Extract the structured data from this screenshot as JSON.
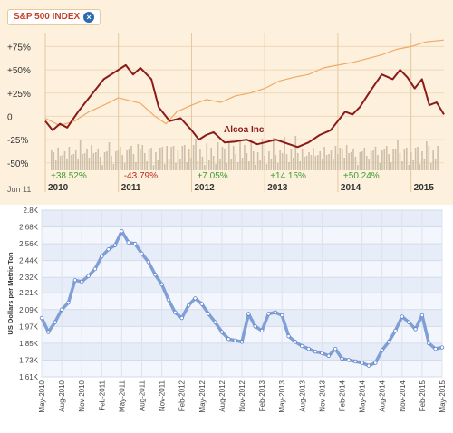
{
  "chart_data": [
    {
      "type": "line",
      "title": "S&P 500 INDEX",
      "title_close_icon": "close-icon",
      "y_ticks": [
        "+75%",
        "+50%",
        "+25%",
        "0",
        "-25%",
        "-50%"
      ],
      "y_tick_values": [
        75,
        50,
        25,
        0,
        -25,
        -50
      ],
      "ylim": [
        -58,
        90
      ],
      "x_range": [
        2010.0,
        2015.45
      ],
      "x_tick_values": [
        2010.0,
        2011.0,
        2012.0,
        2013.0,
        2014.0,
        2015.0
      ],
      "x_ticks": [
        "2010",
        "2011",
        "2012",
        "2013",
        "2014",
        "2015"
      ],
      "corner_label": "Jun 11",
      "annual_changes": [
        {
          "x": 2010.0,
          "label": "+38.52%",
          "color": "#3e9b2e"
        },
        {
          "x": 2011.0,
          "label": "-43.79%",
          "color": "#c0261b"
        },
        {
          "x": 2012.0,
          "label": "+7.05%",
          "color": "#3e9b2e"
        },
        {
          "x": 2013.0,
          "label": "+14.15%",
          "color": "#3e9b2e"
        },
        {
          "x": 2014.0,
          "label": "+50.24%",
          "color": "#3e9b2e"
        }
      ],
      "annotation": "Alcoa Inc",
      "series": [
        {
          "name": "Alcoa Inc",
          "color": "#8b1a1a",
          "points": [
            [
              2010.0,
              -5
            ],
            [
              2010.1,
              -15
            ],
            [
              2010.2,
              -8
            ],
            [
              2010.3,
              -12
            ],
            [
              2010.45,
              5
            ],
            [
              2010.6,
              20
            ],
            [
              2010.8,
              40
            ],
            [
              2011.0,
              50
            ],
            [
              2011.1,
              55
            ],
            [
              2011.2,
              45
            ],
            [
              2011.3,
              52
            ],
            [
              2011.45,
              40
            ],
            [
              2011.55,
              10
            ],
            [
              2011.7,
              -5
            ],
            [
              2011.85,
              -2
            ],
            [
              2012.0,
              -15
            ],
            [
              2012.1,
              -25
            ],
            [
              2012.2,
              -20
            ],
            [
              2012.3,
              -17
            ],
            [
              2012.45,
              -28
            ],
            [
              2012.6,
              -27
            ],
            [
              2012.75,
              -25
            ],
            [
              2012.9,
              -30
            ],
            [
              2013.0,
              -28
            ],
            [
              2013.15,
              -25
            ],
            [
              2013.3,
              -29
            ],
            [
              2013.45,
              -33
            ],
            [
              2013.6,
              -28
            ],
            [
              2013.75,
              -20
            ],
            [
              2013.9,
              -15
            ],
            [
              2014.0,
              -5
            ],
            [
              2014.1,
              5
            ],
            [
              2014.2,
              2
            ],
            [
              2014.3,
              10
            ],
            [
              2014.45,
              28
            ],
            [
              2014.6,
              45
            ],
            [
              2014.75,
              40
            ],
            [
              2014.85,
              50
            ],
            [
              2014.95,
              42
            ],
            [
              2015.05,
              30
            ],
            [
              2015.15,
              40
            ],
            [
              2015.25,
              12
            ],
            [
              2015.35,
              15
            ],
            [
              2015.45,
              2
            ]
          ]
        },
        {
          "name": "S&P 500 INDEX",
          "color": "#f0a865",
          "points": [
            [
              2010.0,
              -2
            ],
            [
              2010.2,
              -10
            ],
            [
              2010.4,
              -5
            ],
            [
              2010.6,
              5
            ],
            [
              2010.8,
              12
            ],
            [
              2011.0,
              20
            ],
            [
              2011.3,
              14
            ],
            [
              2011.5,
              0
            ],
            [
              2011.65,
              -8
            ],
            [
              2011.8,
              5
            ],
            [
              2012.0,
              12
            ],
            [
              2012.2,
              18
            ],
            [
              2012.4,
              15
            ],
            [
              2012.6,
              22
            ],
            [
              2012.8,
              25
            ],
            [
              2013.0,
              30
            ],
            [
              2013.2,
              38
            ],
            [
              2013.4,
              42
            ],
            [
              2013.6,
              45
            ],
            [
              2013.8,
              52
            ],
            [
              2014.0,
              55
            ],
            [
              2014.2,
              58
            ],
            [
              2014.4,
              62
            ],
            [
              2014.6,
              66
            ],
            [
              2014.8,
              72
            ],
            [
              2015.0,
              75
            ],
            [
              2015.2,
              80
            ],
            [
              2015.45,
              82
            ]
          ]
        }
      ],
      "grid": true
    },
    {
      "type": "line",
      "ylabel": "US Dollars per Metric Ton",
      "y_ticks": [
        "2.8K",
        "2.68K",
        "2.56K",
        "2.44K",
        "2.32K",
        "2.21K",
        "2.09K",
        "1.97K",
        "1.85K",
        "1.73K",
        "1.61K"
      ],
      "y_tick_values": [
        2.8,
        2.68,
        2.56,
        2.44,
        2.32,
        2.21,
        2.09,
        1.97,
        1.85,
        1.73,
        1.61
      ],
      "ylim": [
        1.61,
        2.8
      ],
      "x": [
        "May-2010",
        "Jun-2010",
        "Jul-2010",
        "Aug-2010",
        "Sep-2010",
        "Oct-2010",
        "Nov-2010",
        "Dec-2010",
        "Jan-2011",
        "Feb-2011",
        "Mar-2011",
        "Apr-2011",
        "May-2011",
        "Jun-2011",
        "Jul-2011",
        "Aug-2011",
        "Sep-2011",
        "Oct-2011",
        "Nov-2011",
        "Dec-2011",
        "Jan-2012",
        "Feb-2012",
        "Mar-2012",
        "Apr-2012",
        "May-2012",
        "Jun-2012",
        "Jul-2012",
        "Aug-2012",
        "Sep-2012",
        "Oct-2012",
        "Nov-2012",
        "Dec-2012",
        "Jan-2013",
        "Feb-2013",
        "Mar-2013",
        "Apr-2013",
        "May-2013",
        "Jun-2013",
        "Jul-2013",
        "Aug-2013",
        "Sep-2013",
        "Oct-2013",
        "Nov-2013",
        "Dec-2013",
        "Jan-2014",
        "Feb-2014",
        "Mar-2014",
        "Apr-2014",
        "May-2014",
        "Jun-2014",
        "Jul-2014",
        "Aug-2014",
        "Sep-2014",
        "Oct-2014",
        "Nov-2014",
        "Dec-2014",
        "Jan-2015",
        "Feb-2015",
        "Mar-2015",
        "Apr-2015",
        "May-2015"
      ],
      "x_tick_labels": [
        "May-2010",
        "Aug-2010",
        "Nov-2010",
        "Feb-2011",
        "May-2011",
        "Aug-2011",
        "Nov-2011",
        "Feb-2012",
        "May-2012",
        "Aug-2012",
        "Nov-2012",
        "Feb-2013",
        "May-2013",
        "Aug-2013",
        "Nov-2013",
        "Feb-2014",
        "May-2014",
        "Aug-2014",
        "Nov-2014",
        "Feb-2015",
        "May-2015"
      ],
      "series": [
        {
          "name": "",
          "color": "#7f9fd6",
          "values": [
            2.03,
            1.93,
            2.0,
            2.09,
            2.14,
            2.3,
            2.29,
            2.33,
            2.38,
            2.47,
            2.52,
            2.55,
            2.65,
            2.57,
            2.56,
            2.49,
            2.43,
            2.34,
            2.27,
            2.16,
            2.07,
            2.03,
            2.12,
            2.17,
            2.13,
            2.06,
            2.0,
            1.93,
            1.88,
            1.87,
            1.86,
            2.06,
            1.97,
            1.94,
            2.06,
            2.07,
            2.05,
            1.9,
            1.86,
            1.83,
            1.81,
            1.79,
            1.78,
            1.76,
            1.81,
            1.74,
            1.73,
            1.72,
            1.71,
            1.69,
            1.71,
            1.8,
            1.86,
            1.94,
            2.04,
            2.0,
            1.95,
            2.05,
            1.85,
            1.81,
            1.82
          ]
        }
      ],
      "grid": true
    }
  ]
}
